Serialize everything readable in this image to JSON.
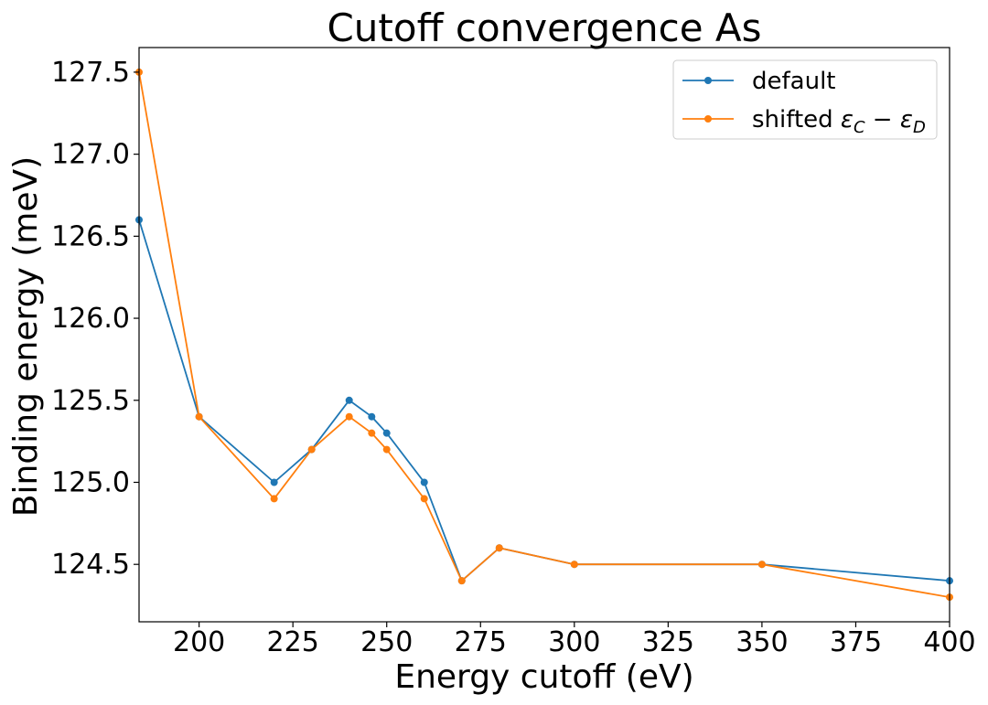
{
  "chart_data": {
    "type": "line",
    "title": "Cutoff convergence As",
    "xlabel": "Energy cutoff (eV)",
    "ylabel": "Binding energy (meV)",
    "xlim": [
      184,
      400
    ],
    "ylim": [
      124.15,
      127.65
    ],
    "xticks": [
      200,
      225,
      250,
      275,
      300,
      325,
      350,
      375,
      400
    ],
    "yticks": [
      124.5,
      125.0,
      125.5,
      126.0,
      126.5,
      127.0,
      127.5
    ],
    "ytick_labels": [
      "124.5",
      "125.0",
      "125.5",
      "126.0",
      "126.5",
      "127.0",
      "127.5"
    ],
    "legend_position": "top-right",
    "grid": false,
    "series": [
      {
        "name": "default",
        "color": "#1f77b4",
        "marker": "circle",
        "x": [
          184,
          200,
          220,
          230,
          240,
          246,
          250,
          260,
          270,
          280,
          300,
          350,
          400
        ],
        "y": [
          126.6,
          125.4,
          125.0,
          125.2,
          125.5,
          125.4,
          125.3,
          125.0,
          124.4,
          124.6,
          124.5,
          124.5,
          124.4
        ]
      },
      {
        "name": "shifted εC − εD",
        "legend_parts": [
          "shifted ",
          "ε",
          "C",
          " − ",
          "ε",
          "D"
        ],
        "color": "#ff7f0e",
        "marker": "circle",
        "x": [
          184,
          200,
          220,
          230,
          240,
          246,
          250,
          260,
          270,
          280,
          300,
          350,
          400
        ],
        "y": [
          127.5,
          125.4,
          124.9,
          125.2,
          125.4,
          125.3,
          125.2,
          124.9,
          124.4,
          124.6,
          124.5,
          124.5,
          124.3
        ]
      }
    ]
  }
}
